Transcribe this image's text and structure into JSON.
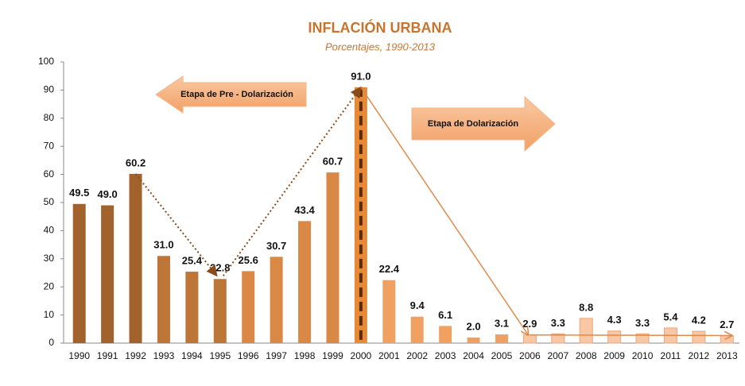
{
  "chart_data": {
    "type": "bar",
    "title": "INFLACIÓN URBANA",
    "subtitle": "Porcentajes, 1990-2013",
    "categories": [
      "1990",
      "1991",
      "1992",
      "1993",
      "1994",
      "1995",
      "1996",
      "1997",
      "1998",
      "1999",
      "2000",
      "2001",
      "2002",
      "2003",
      "2004",
      "2005",
      "2006",
      "2007",
      "2008",
      "2009",
      "2010",
      "2011",
      "2012",
      "2013"
    ],
    "values": [
      49.5,
      49.0,
      60.2,
      31.0,
      25.4,
      22.8,
      25.6,
      30.7,
      43.4,
      60.7,
      91.0,
      22.4,
      9.4,
      6.1,
      2.0,
      3.1,
      2.9,
      3.3,
      8.8,
      4.3,
      3.3,
      5.4,
      4.2,
      2.7
    ],
    "value_labels": [
      "49.5",
      "49.0",
      "60.2",
      "31.0",
      "25.4",
      "22.8",
      "25.6",
      "30.7",
      "43.4",
      "60.7",
      "91.0",
      "22.4",
      "9.4",
      "6.1",
      "2.0",
      "3.1",
      "2.9",
      "3.3",
      "8.8",
      "4.3",
      "3.3",
      "5.4",
      "4.2",
      "2.7"
    ],
    "colors": [
      "#a2622c",
      "#a2622c",
      "#a2622c",
      "#bd7638",
      "#bd7638",
      "#bd7638",
      "#d98945",
      "#d98945",
      "#d98945",
      "#d98945",
      "#e68a38",
      "#f0a060",
      "#f0a060",
      "#f0a060",
      "#f0a060",
      "#f0a060",
      "#f7c7a6",
      "#f7c7a6",
      "#f7c7a6",
      "#f7c7a6",
      "#f7c7a6",
      "#f7c7a6",
      "#f7c7a6",
      "#f7c7a6"
    ],
    "ylim": [
      0,
      100
    ],
    "yticks": [
      0,
      10,
      20,
      30,
      40,
      50,
      60,
      70,
      80,
      90,
      100
    ],
    "annotations": [
      "Etapa de Pre - Dolarización",
      "Etapa de Dolarización"
    ]
  }
}
